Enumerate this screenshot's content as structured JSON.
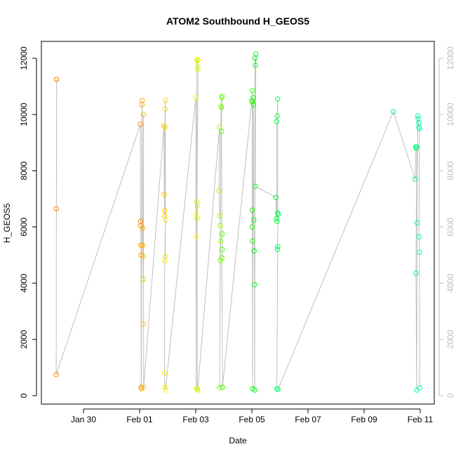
{
  "chart_data": {
    "type": "scatter",
    "title": "ATOM2 Southbound H_GEOS5",
    "xlabel": "Date",
    "ylabel": "H_GEOS5",
    "xlim": [
      "2016-01-28T12:00",
      "2016-02-11T12:00"
    ],
    "ylim": [
      -300,
      12600
    ],
    "x_ticks": [
      {
        "label": "Jan 30",
        "date": "2016-01-30"
      },
      {
        "label": "Feb 01",
        "date": "2016-02-01"
      },
      {
        "label": "Feb 03",
        "date": "2016-02-03"
      },
      {
        "label": "Feb 05",
        "date": "2016-02-05"
      },
      {
        "label": "Feb 07",
        "date": "2016-02-07"
      },
      {
        "label": "Feb 09",
        "date": "2016-02-09"
      },
      {
        "label": "Feb 11",
        "date": "2016-02-11"
      }
    ],
    "y_ticks": [
      0,
      2000,
      4000,
      6000,
      8000,
      10000,
      12000
    ],
    "right_axis_ticks": [
      0,
      2000,
      4000,
      6000,
      8000,
      10000,
      12000
    ],
    "grid": false,
    "marker": "open-circle",
    "connecting_line_color": "#c0c0c0",
    "tick_color": "#000000",
    "right_axis_color": "#bebebe",
    "color_scale": [
      "#ff7f00",
      "#ffff00",
      "#00ff00",
      "#00ffc0"
    ],
    "points": [
      {
        "x": "2016-01-29T01:00",
        "y": 11250
      },
      {
        "x": "2016-01-29T01:00",
        "y": 11250
      },
      {
        "x": "2016-01-29T00:50",
        "y": 6650
      },
      {
        "x": "2016-01-29T00:40",
        "y": 750
      },
      {
        "x": "2016-02-01T00:40",
        "y": 9650
      },
      {
        "x": "2016-02-01T00:50",
        "y": 6200
      },
      {
        "x": "2016-02-01T01:00",
        "y": 6050
      },
      {
        "x": "2016-02-01T01:10",
        "y": 5350
      },
      {
        "x": "2016-02-01T01:10",
        "y": 5000
      },
      {
        "x": "2016-02-01T01:20",
        "y": 300
      },
      {
        "x": "2016-02-01T01:30",
        "y": 250
      },
      {
        "x": "2016-02-01T02:00",
        "y": 10350
      },
      {
        "x": "2016-02-01T02:10",
        "y": 10500
      },
      {
        "x": "2016-02-01T02:30",
        "y": 5950
      },
      {
        "x": "2016-02-01T02:40",
        "y": 5350
      },
      {
        "x": "2016-02-01T03:00",
        "y": 4950
      },
      {
        "x": "2016-02-01T03:10",
        "y": 4150
      },
      {
        "x": "2016-02-01T03:20",
        "y": 10000
      },
      {
        "x": "2016-02-01T03:20",
        "y": 2550
      },
      {
        "x": "2016-02-01T03:30",
        "y": 300
      },
      {
        "x": "2016-02-01T20:50",
        "y": 9600
      },
      {
        "x": "2016-02-01T21:10",
        "y": 7150
      },
      {
        "x": "2016-02-01T21:20",
        "y": 6600
      },
      {
        "x": "2016-02-01T21:30",
        "y": 6400
      },
      {
        "x": "2016-02-01T21:40",
        "y": 9550
      },
      {
        "x": "2016-02-01T21:50",
        "y": 10200
      },
      {
        "x": "2016-02-01T22:00",
        "y": 10500
      },
      {
        "x": "2016-02-01T22:00",
        "y": 4950
      },
      {
        "x": "2016-02-01T22:10",
        "y": 6250
      },
      {
        "x": "2016-02-01T21:30",
        "y": 4800
      },
      {
        "x": "2016-02-01T21:20",
        "y": 800
      },
      {
        "x": "2016-02-01T21:40",
        "y": 300
      },
      {
        "x": "2016-02-01T22:10",
        "y": 200
      },
      {
        "x": "2016-02-03T00:00",
        "y": 10600
      },
      {
        "x": "2016-02-03T00:10",
        "y": 6450
      },
      {
        "x": "2016-02-03T00:20",
        "y": 5650
      },
      {
        "x": "2016-02-03T00:30",
        "y": 250
      },
      {
        "x": "2016-02-03T01:00",
        "y": 11950
      },
      {
        "x": "2016-02-03T01:20",
        "y": 11900
      },
      {
        "x": "2016-02-03T01:40",
        "y": 11700
      },
      {
        "x": "2016-02-03T01:50",
        "y": 11950
      },
      {
        "x": "2016-02-03T02:00",
        "y": 11600
      },
      {
        "x": "2016-02-03T01:00",
        "y": 6900
      },
      {
        "x": "2016-02-03T01:30",
        "y": 6750
      },
      {
        "x": "2016-02-03T01:10",
        "y": 6300
      },
      {
        "x": "2016-02-03T01:20",
        "y": 250
      },
      {
        "x": "2016-02-03T01:40",
        "y": 200
      },
      {
        "x": "2016-02-03T20:20",
        "y": 9550
      },
      {
        "x": "2016-02-03T20:00",
        "y": 7300
      },
      {
        "x": "2016-02-03T20:40",
        "y": 6400
      },
      {
        "x": "2016-02-03T21:00",
        "y": 6050
      },
      {
        "x": "2016-02-03T21:20",
        "y": 5500
      },
      {
        "x": "2016-02-03T21:00",
        "y": 4800
      },
      {
        "x": "2016-02-03T20:20",
        "y": 280
      },
      {
        "x": "2016-02-03T21:40",
        "y": 10300
      },
      {
        "x": "2016-02-03T22:00",
        "y": 10250
      },
      {
        "x": "2016-02-03T22:20",
        "y": 10600
      },
      {
        "x": "2016-02-03T22:30",
        "y": 10650
      },
      {
        "x": "2016-02-03T22:00",
        "y": 9400
      },
      {
        "x": "2016-02-03T22:30",
        "y": 5750
      },
      {
        "x": "2016-02-03T22:40",
        "y": 5200
      },
      {
        "x": "2016-02-03T22:20",
        "y": 4900
      },
      {
        "x": "2016-02-03T22:50",
        "y": 300
      },
      {
        "x": "2016-02-05T00:00",
        "y": 10500
      },
      {
        "x": "2016-02-05T00:20",
        "y": 10450
      },
      {
        "x": "2016-02-05T00:30",
        "y": 10850
      },
      {
        "x": "2016-02-05T00:10",
        "y": 6000
      },
      {
        "x": "2016-02-05T00:20",
        "y": 6600
      },
      {
        "x": "2016-02-05T00:30",
        "y": 5500
      },
      {
        "x": "2016-02-05T00:40",
        "y": 250
      },
      {
        "x": "2016-02-05T01:10",
        "y": 10600
      },
      {
        "x": "2016-02-05T01:20",
        "y": 10350
      },
      {
        "x": "2016-02-05T01:40",
        "y": 6250
      },
      {
        "x": "2016-02-05T02:00",
        "y": 5150
      },
      {
        "x": "2016-02-05T02:20",
        "y": 3950
      },
      {
        "x": "2016-02-05T02:30",
        "y": 200
      },
      {
        "x": "2016-02-05T02:40",
        "y": 12000
      },
      {
        "x": "2016-02-05T03:00",
        "y": 11750
      },
      {
        "x": "2016-02-05T03:20",
        "y": 12150
      },
      {
        "x": "2016-02-05T03:00",
        "y": 7450
      },
      {
        "x": "2016-02-05T20:30",
        "y": 7050
      },
      {
        "x": "2016-02-05T21:00",
        "y": 6300
      },
      {
        "x": "2016-02-05T21:30",
        "y": 6200
      },
      {
        "x": "2016-02-05T21:10",
        "y": 9750
      },
      {
        "x": "2016-02-05T21:40",
        "y": 9950
      },
      {
        "x": "2016-02-05T22:00",
        "y": 10550
      },
      {
        "x": "2016-02-05T22:10",
        "y": 6500
      },
      {
        "x": "2016-02-05T22:30",
        "y": 6450
      },
      {
        "x": "2016-02-05T21:50",
        "y": 5200
      },
      {
        "x": "2016-02-05T22:10",
        "y": 5300
      },
      {
        "x": "2016-02-05T21:20",
        "y": 250
      },
      {
        "x": "2016-02-05T22:20",
        "y": 220
      },
      {
        "x": "2016-02-10T01:00",
        "y": 10100
      },
      {
        "x": "2016-02-10T19:40",
        "y": 7700
      },
      {
        "x": "2016-02-10T20:20",
        "y": 8850
      },
      {
        "x": "2016-02-10T20:40",
        "y": 8800
      },
      {
        "x": "2016-02-10T21:00",
        "y": 8850
      },
      {
        "x": "2016-02-10T20:20",
        "y": 4350
      },
      {
        "x": "2016-02-10T21:00",
        "y": 200
      },
      {
        "x": "2016-02-10T21:20",
        "y": 6150
      },
      {
        "x": "2016-02-10T22:00",
        "y": 9950
      },
      {
        "x": "2016-02-10T22:20",
        "y": 9850
      },
      {
        "x": "2016-02-10T22:40",
        "y": 9700
      },
      {
        "x": "2016-02-10T23:00",
        "y": 9550
      },
      {
        "x": "2016-02-10T23:20",
        "y": 9500
      },
      {
        "x": "2016-02-10T23:00",
        "y": 5650
      },
      {
        "x": "2016-02-10T23:20",
        "y": 5100
      },
      {
        "x": "2016-02-10T23:40",
        "y": 280
      }
    ]
  }
}
